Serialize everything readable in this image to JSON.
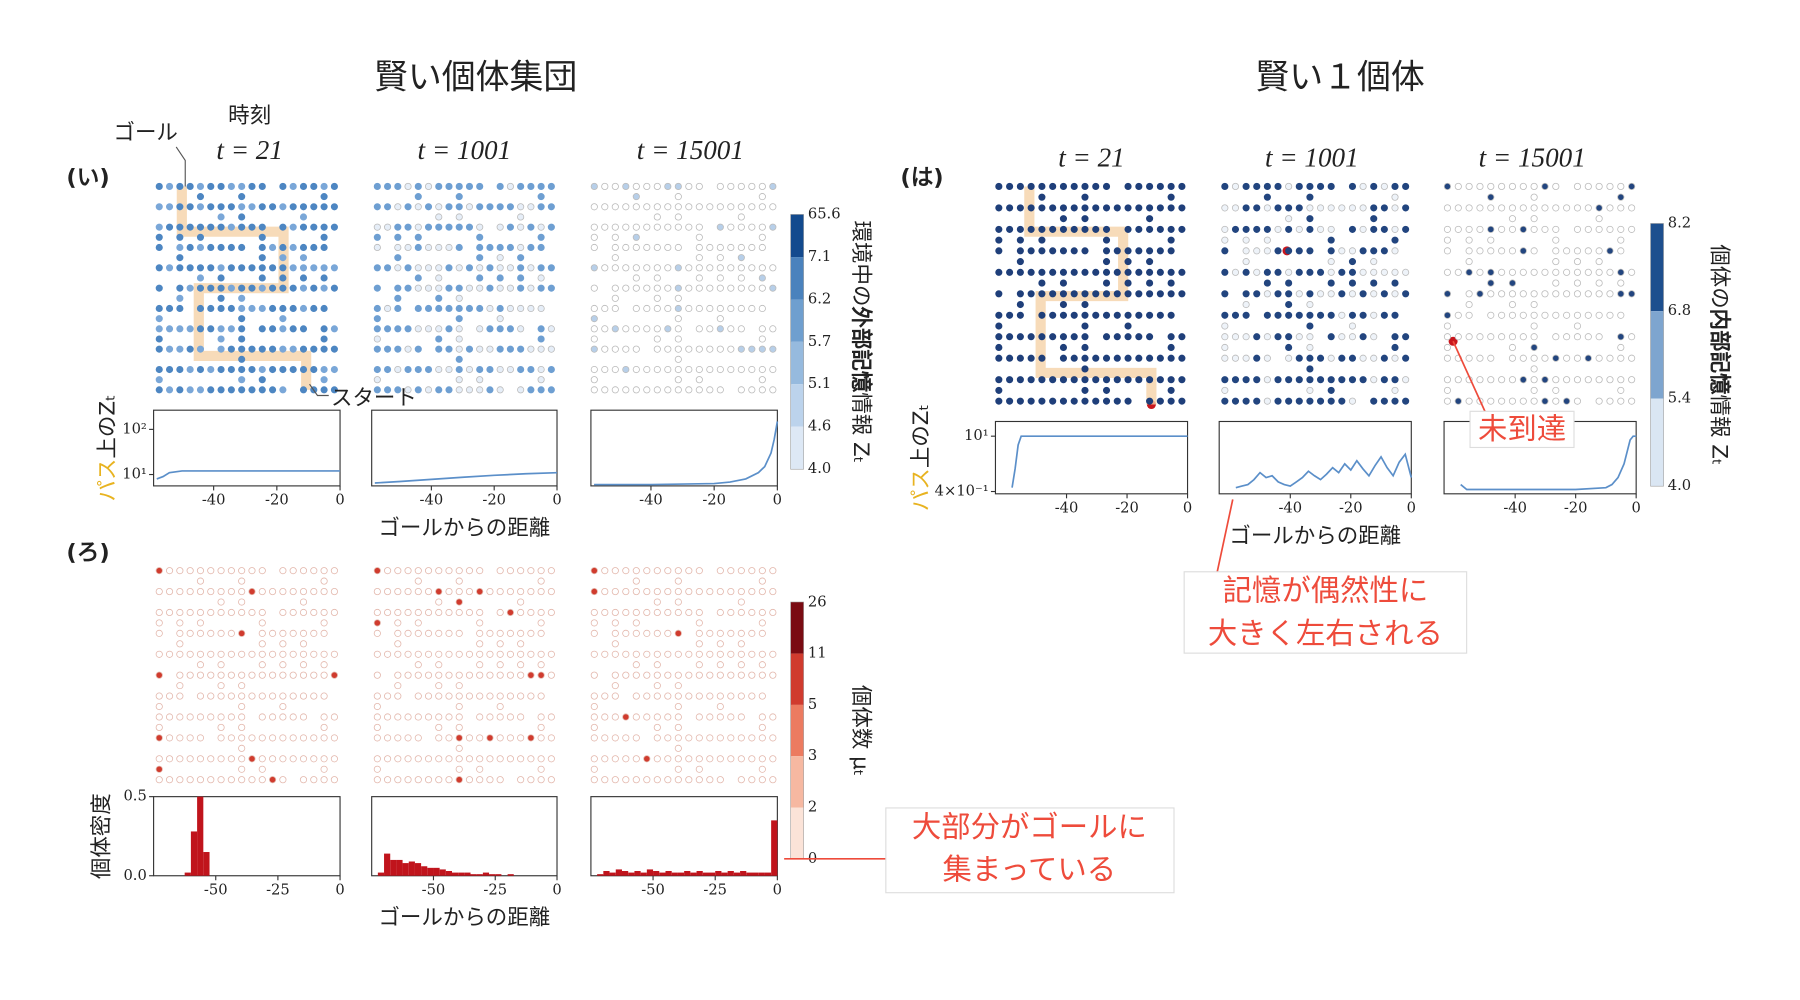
{
  "titles": [
    "賢い個体集団",
    "賢い１個体"
  ],
  "panel_labels": [
    "(い)",
    "(ろ)",
    "(は)"
  ],
  "time_labels": [
    "t = 21",
    "t = 1001",
    "t = 15001"
  ],
  "annotations": {
    "goal": "ゴール",
    "time": "時刻",
    "start": "スタート",
    "unreached": "未到達",
    "memory": [
      "記憶が偶然性に",
      "大きく左右される"
    ],
    "gathered": [
      "大部分がゴールに",
      "集まっている"
    ]
  },
  "colorbars": [
    {
      "labels": [
        "4.0",
        "4.6",
        "5.1",
        "5.7",
        "6.2",
        "7.1",
        "65.6"
      ],
      "colors": [
        "#dde8f5",
        "#bcd3ec",
        "#96bade",
        "#6f9fcf",
        "#4a82bd",
        "#134a8e"
      ],
      "title": [
        "環境中の",
        "外部記憶",
        "情報 Zₜ"
      ]
    },
    {
      "labels": [
        "0",
        "2",
        "3",
        "5",
        "11",
        "26"
      ],
      "colors": [
        "#fbe3d8",
        "#f6b8a1",
        "#ec7b60",
        "#d03b2e",
        "#7a0b12"
      ],
      "title": [
        "個体数 μₜ"
      ]
    },
    {
      "labels": [
        "4.0",
        "5.4",
        "6.8",
        "8.2"
      ],
      "colors": [
        "#dae6f3",
        "#7ea5cf",
        "#1d4f8e"
      ],
      "title": [
        "個体の",
        "内部記憶",
        "情報 Zₜ"
      ]
    }
  ],
  "chart_data": [
    {
      "type": "line",
      "color": "#5b8fc9",
      "ylog": true,
      "x": [
        -58,
        -56,
        -54,
        -50,
        -40,
        -30,
        -20,
        -10,
        0
      ],
      "values": [
        8,
        9,
        11,
        12,
        12,
        12,
        12,
        12,
        12
      ],
      "xlim": [
        -59,
        0
      ],
      "ylim": [
        5.6,
        266
      ],
      "xticks": [
        -40,
        -20,
        0
      ],
      "yticks": [
        {
          "value": 10,
          "label": "10¹"
        },
        {
          "value": 100,
          "label": "10²"
        }
      ],
      "ylabel": {
        "highlight": "パス",
        "text": "上のZₜ"
      }
    },
    {
      "type": "line",
      "color": "#5b8fc9",
      "ylog": true,
      "x": [
        -58,
        -50,
        -40,
        -30,
        -20,
        -10,
        0
      ],
      "values": [
        6.5,
        7,
        7.8,
        8.7,
        9.6,
        10.4,
        11
      ],
      "xlim": [
        -59,
        0
      ],
      "ylim": [
        5.6,
        266
      ],
      "xticks": [
        -40,
        -20,
        0
      ],
      "xlabel": "ゴールからの距離"
    },
    {
      "type": "line",
      "color": "#5b8fc9",
      "ylog": true,
      "x": [
        -58,
        -40,
        -20,
        -15,
        -10,
        -6,
        -4,
        -2,
        -1,
        0
      ],
      "values": [
        6,
        6,
        6.3,
        6.8,
        8,
        11,
        15,
        30,
        60,
        150
      ],
      "xlim": [
        -59,
        0
      ],
      "ylim": [
        5.6,
        266
      ],
      "xticks": [
        -40,
        -20,
        0
      ]
    },
    {
      "type": "histogram",
      "color": "#c0141c",
      "bins": [
        -72.5,
        -70,
        -67.5,
        -65,
        -62.5,
        -60,
        -57.5,
        -55,
        -52.5,
        -50,
        -47.5,
        -45,
        -42.5,
        -40,
        -37.5,
        -35,
        -32.5,
        -30,
        -27.5,
        -25,
        -22.5,
        -20,
        -17.5,
        -15,
        -12.5,
        -10,
        -7.5,
        -5,
        -2.5,
        0
      ],
      "values": [
        0,
        0,
        0,
        0,
        0.02,
        0.28,
        0.5,
        0.15,
        0,
        0,
        0,
        0,
        0,
        0,
        0,
        0,
        0,
        0,
        0,
        0,
        0,
        0,
        0,
        0,
        0,
        0,
        0,
        0,
        0
      ],
      "xlim": [
        -75,
        0
      ],
      "ylim": [
        0,
        0.5
      ],
      "xticks": [
        -50,
        -25,
        0
      ],
      "yticks": [
        {
          "value": 0,
          "label": "0.0"
        },
        0.5
      ],
      "ylabel": {
        "text": "個体密度"
      }
    },
    {
      "type": "histogram",
      "color": "#c0141c",
      "bins": [
        -72.5,
        -70,
        -67.5,
        -65,
        -62.5,
        -60,
        -57.5,
        -55,
        -52.5,
        -50,
        -47.5,
        -45,
        -42.5,
        -40,
        -37.5,
        -35,
        -32.5,
        -30,
        -27.5,
        -25,
        -22.5,
        -20,
        -17.5,
        -15,
        -12.5,
        -10,
        -7.5,
        -5,
        -2.5,
        0
      ],
      "values": [
        0.02,
        0.14,
        0.1,
        0.1,
        0.08,
        0.09,
        0.08,
        0.06,
        0.05,
        0.05,
        0.04,
        0.03,
        0.02,
        0.02,
        0.02,
        0.01,
        0.01,
        0.02,
        0.01,
        0.01,
        0,
        0.01,
        0,
        0,
        0,
        0,
        0,
        0,
        0
      ],
      "xlim": [
        -75,
        0
      ],
      "ylim": [
        0,
        0.5
      ],
      "xticks": [
        -50,
        -25,
        0
      ],
      "xlabel": "ゴールからの距離"
    },
    {
      "type": "histogram",
      "color": "#c0141c",
      "bins": [
        -72.5,
        -70,
        -67.5,
        -65,
        -62.5,
        -60,
        -57.5,
        -55,
        -52.5,
        -50,
        -47.5,
        -45,
        -42.5,
        -40,
        -37.5,
        -35,
        -32.5,
        -30,
        -27.5,
        -25,
        -22.5,
        -20,
        -17.5,
        -15,
        -12.5,
        -10,
        -7.5,
        -5,
        -2.5,
        0
      ],
      "values": [
        0.01,
        0.03,
        0.02,
        0.04,
        0.03,
        0.02,
        0.03,
        0.02,
        0.04,
        0.03,
        0.02,
        0.03,
        0.02,
        0.02,
        0.03,
        0.02,
        0.03,
        0.02,
        0.02,
        0.03,
        0.02,
        0.03,
        0.02,
        0.03,
        0.02,
        0.02,
        0.02,
        0.02,
        0.35
      ],
      "xlim": [
        -75,
        0
      ],
      "ylim": [
        0,
        0.5
      ],
      "xticks": [
        -50,
        -25,
        0
      ]
    },
    {
      "type": "line",
      "color": "#5b8fc9",
      "ylog": true,
      "x": [
        -58,
        -57,
        -56,
        -55,
        -50,
        -30,
        0
      ],
      "values": [
        0.5,
        1.5,
        6,
        10,
        10,
        10,
        10
      ],
      "xlim": [
        -63.5,
        0
      ],
      "ylim": [
        0.35,
        23.5
      ],
      "xticks": [
        -40,
        -20,
        0
      ],
      "yticks": [
        {
          "value": 0.4,
          "label": "4×10⁻¹"
        },
        {
          "value": 10,
          "label": "10¹"
        }
      ],
      "ylabel": {
        "highlight": "パス",
        "text": "上のZₜ"
      }
    },
    {
      "type": "line",
      "color": "#5b8fc9",
      "ylog": true,
      "x": [
        -58,
        -56,
        -54,
        -52,
        -50,
        -48,
        -46,
        -44,
        -42,
        -40,
        -38,
        -36,
        -34,
        -32,
        -30,
        -28,
        -26,
        -24,
        -22,
        -20,
        -18,
        -16,
        -14,
        -12,
        -10,
        -8,
        -6,
        -4,
        -2,
        0
      ],
      "values": [
        0.5,
        0.55,
        0.6,
        0.8,
        1.2,
        0.9,
        1.0,
        0.7,
        0.6,
        0.55,
        0.7,
        0.9,
        1.3,
        1.0,
        0.8,
        1.1,
        1.6,
        1.2,
        2.0,
        1.4,
        2.4,
        1.5,
        1.0,
        1.8,
        3.0,
        1.6,
        1.0,
        2.2,
        3.5,
        0.9
      ],
      "xlim": [
        -63.5,
        0
      ],
      "ylim": [
        0.35,
        23.5
      ],
      "xticks": [
        -40,
        -20,
        0
      ],
      "xlabel": "ゴールからの距離"
    },
    {
      "type": "line",
      "color": "#5b8fc9",
      "ylog": true,
      "x": [
        -58,
        -56,
        -50,
        -40,
        -30,
        -20,
        -10,
        -8,
        -6,
        -4,
        -3,
        -2,
        -1,
        0
      ],
      "values": [
        0.6,
        0.45,
        0.45,
        0.45,
        0.45,
        0.45,
        0.5,
        0.6,
        0.9,
        2,
        4,
        8,
        10,
        10
      ],
      "xlim": [
        -63.5,
        0
      ],
      "ylim": [
        0.35,
        23.5
      ],
      "xticks": [
        -40,
        -20,
        0
      ]
    }
  ]
}
